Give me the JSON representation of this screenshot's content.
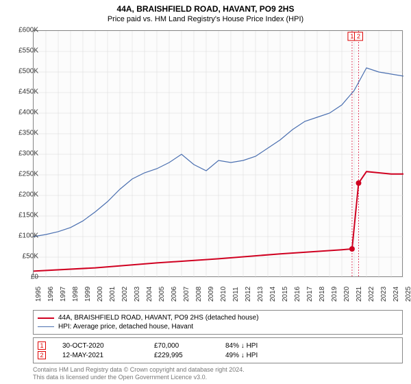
{
  "title": "44A, BRAISHFIELD ROAD, HAVANT, PO9 2HS",
  "subtitle": "Price paid vs. HM Land Registry's House Price Index (HPI)",
  "chart": {
    "type": "line",
    "background_color": "#fcfcfc",
    "border_color": "#888888",
    "grid_color": "#d8d8d8",
    "ylim": [
      0,
      600000
    ],
    "ytick_step": 50000,
    "ytick_labels": [
      "£0",
      "£50K",
      "£100K",
      "£150K",
      "£200K",
      "£250K",
      "£300K",
      "£350K",
      "£400K",
      "£450K",
      "£500K",
      "£550K",
      "£600K"
    ],
    "xlim": [
      1995,
      2025
    ],
    "xtick_step": 1,
    "xtick_labels": [
      "1995",
      "1996",
      "1997",
      "1998",
      "1999",
      "2000",
      "2001",
      "2002",
      "2003",
      "2004",
      "2005",
      "2006",
      "2007",
      "2008",
      "2009",
      "2010",
      "2011",
      "2012",
      "2013",
      "2014",
      "2015",
      "2016",
      "2017",
      "2018",
      "2019",
      "2020",
      "2021",
      "2022",
      "2023",
      "2024",
      "2025"
    ],
    "series": [
      {
        "name": "hpi",
        "label": "HPI: Average price, detached house, Havant",
        "color": "#4a6fb0",
        "line_width": 1.2,
        "x": [
          1995,
          1996,
          1997,
          1998,
          1999,
          2000,
          2001,
          2002,
          2003,
          2004,
          2005,
          2006,
          2007,
          2008,
          2009,
          2010,
          2011,
          2012,
          2013,
          2014,
          2015,
          2016,
          2017,
          2018,
          2019,
          2020,
          2021,
          2022,
          2023,
          2024,
          2025
        ],
        "y": [
          100000,
          105000,
          112000,
          122000,
          138000,
          160000,
          185000,
          215000,
          240000,
          255000,
          265000,
          280000,
          300000,
          275000,
          260000,
          285000,
          280000,
          285000,
          295000,
          315000,
          335000,
          360000,
          380000,
          390000,
          400000,
          420000,
          455000,
          510000,
          500000,
          495000,
          490000
        ]
      },
      {
        "name": "price_paid",
        "label": "44A, BRAISHFIELD ROAD, HAVANT, PO9 2HS (detached house)",
        "color": "#d00020",
        "line_width": 2,
        "segments": [
          {
            "x": [
              1995,
              2000,
              2005,
              2010,
              2015,
              2020,
              2020.83
            ],
            "y": [
              16000,
              24000,
              36000,
              46000,
              58000,
              68000,
              70000
            ]
          },
          {
            "x": [
              2020.83,
              2021.36
            ],
            "y": [
              70000,
              229995
            ]
          },
          {
            "x": [
              2021.36,
              2022,
              2023,
              2024,
              2025
            ],
            "y": [
              229995,
              258000,
              255000,
              252000,
              252000
            ]
          }
        ],
        "marker_points": [
          {
            "x": 2020.83,
            "y": 70000
          },
          {
            "x": 2021.36,
            "y": 229995
          }
        ],
        "marker_color": "#d00020",
        "marker_size": 4
      }
    ],
    "vlines": [
      {
        "x": 2020.83,
        "color": "#e04060",
        "dash": "2,2",
        "badge": "1"
      },
      {
        "x": 2021.36,
        "color": "#e04060",
        "dash": "2,2",
        "badge": "2"
      }
    ]
  },
  "legend": {
    "items": [
      {
        "color": "#d00020",
        "width": 2,
        "label": "44A, BRAISHFIELD ROAD, HAVANT, PO9 2HS (detached house)"
      },
      {
        "color": "#4a6fb0",
        "width": 1.2,
        "label": "HPI: Average price, detached house, Havant"
      }
    ]
  },
  "markers": [
    {
      "badge": "1",
      "date": "30-OCT-2020",
      "price": "£70,000",
      "delta": "84% ↓ HPI"
    },
    {
      "badge": "2",
      "date": "12-MAY-2021",
      "price": "£229,995",
      "delta": "49% ↓ HPI"
    }
  ],
  "footer": {
    "line1": "Contains HM Land Registry data © Crown copyright and database right 2024.",
    "line2": "This data is licensed under the Open Government Licence v3.0."
  }
}
